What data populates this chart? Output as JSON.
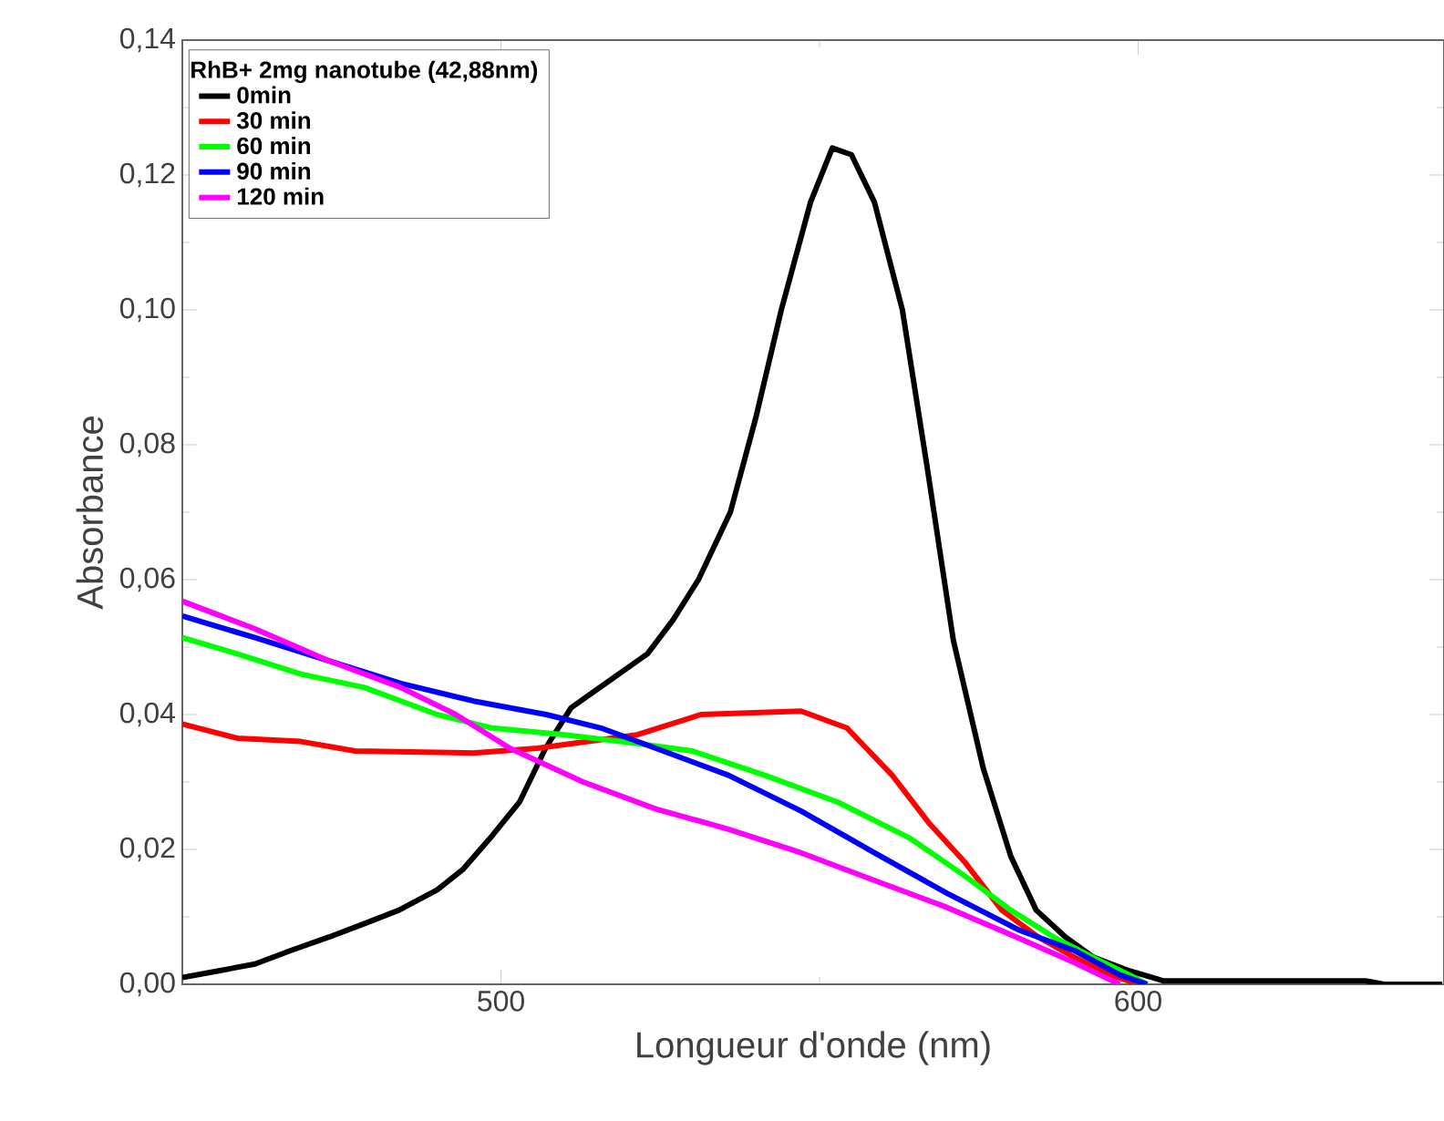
{
  "chart_data": {
    "type": "line",
    "xlabel": "Longueur d'onde (nm)",
    "ylabel": "Absorbance",
    "legend_title": "RhB+ 2mg nanotube (42,88nm)",
    "legend": "top left",
    "marker": "none",
    "line_style": "solid",
    "xlim": [
      450,
      648
    ],
    "xticks": [
      500,
      600
    ],
    "ylim": [
      0,
      0.14
    ],
    "yticks": [
      {
        "value": 0,
        "label": "0,00"
      },
      {
        "value": 0.02,
        "label": "0,02"
      },
      {
        "value": 0.04,
        "label": "0,04"
      },
      {
        "value": 0.06,
        "label": "0,06"
      },
      {
        "value": 0.08,
        "label": "0,08"
      },
      {
        "value": 0.1,
        "label": "0,10"
      },
      {
        "value": 0.12,
        "label": "0,12"
      },
      {
        "value": 0.14,
        "label": "0,14"
      }
    ],
    "series": [
      {
        "name": "0min",
        "color": "#000000",
        "x": [
          450,
          455.7,
          461.4,
          467,
          473,
          478.6,
          484,
          490,
          494,
          498.6,
          502.9,
          507,
          511,
          517,
          523,
          527,
          531,
          536,
          540,
          544,
          548.6,
          552,
          555,
          558.6,
          563,
          567,
          571,
          575.7,
          580,
          584,
          588.6,
          593,
          598.6,
          604,
          635.7,
          638.6,
          647.7
        ],
        "values": [
          0.001,
          0.002,
          0.003,
          0.005,
          0.007,
          0.009,
          0.011,
          0.014,
          0.017,
          0.022,
          0.027,
          0.035,
          0.041,
          0.045,
          0.049,
          0.054,
          0.06,
          0.07,
          0.084,
          0.1,
          0.116,
          0.124,
          0.123,
          0.116,
          0.1,
          0.076,
          0.051,
          0.032,
          0.019,
          0.011,
          0.007,
          0.004,
          0.002,
          0.0005,
          0.0005,
          0,
          0
        ]
      },
      {
        "name": "30 min",
        "color": "#ff0000",
        "x": [
          450,
          458.6,
          468.6,
          477.1,
          495.7,
          505.7,
          521.4,
          531.4,
          547.1,
          554.3,
          561.4,
          567.1,
          572.9,
          578.6,
          584.3,
          590,
          595.7,
          600
        ],
        "values": [
          0.0386,
          0.0365,
          0.036,
          0.0346,
          0.0343,
          0.035,
          0.037,
          0.04,
          0.0405,
          0.038,
          0.031,
          0.024,
          0.018,
          0.011,
          0.007,
          0.004,
          0.0014,
          0
        ]
      },
      {
        "name": "60 min",
        "color": "#00ff00",
        "x": [
          450,
          458.6,
          468.6,
          478.6,
          490,
          498.6,
          510,
          521.4,
          530,
          541.4,
          552.9,
          564.3,
          572.9,
          580,
          587.1,
          592.9,
          598.6,
          601.4
        ],
        "values": [
          0.0514,
          0.049,
          0.046,
          0.044,
          0.04,
          0.038,
          0.037,
          0.0357,
          0.0346,
          0.031,
          0.027,
          0.0216,
          0.016,
          0.011,
          0.0068,
          0.004,
          0.0014,
          0
        ]
      },
      {
        "name": "90 min",
        "color": "#0000ff",
        "x": [
          450,
          461.4,
          472.9,
          484.3,
          495.7,
          507.1,
          515.7,
          524.3,
          535.7,
          547.1,
          558.6,
          570,
          581.4,
          590,
          597.1,
          601.4
        ],
        "values": [
          0.0546,
          0.0514,
          0.048,
          0.0446,
          0.042,
          0.04,
          0.038,
          0.035,
          0.031,
          0.0257,
          0.0195,
          0.0135,
          0.008,
          0.005,
          0.0014,
          0
        ]
      },
      {
        "name": "120 min",
        "color": "#ff00ff",
        "x": [
          450,
          461.4,
          472.9,
          484.3,
          492.9,
          501.4,
          512.9,
          524.3,
          535.7,
          547.1,
          558.6,
          570,
          581.4,
          590,
          597.1
        ],
        "values": [
          0.0568,
          0.0527,
          0.048,
          0.044,
          0.04,
          0.035,
          0.03,
          0.026,
          0.023,
          0.0195,
          0.0154,
          0.0114,
          0.0068,
          0.0032,
          0
        ]
      }
    ]
  }
}
